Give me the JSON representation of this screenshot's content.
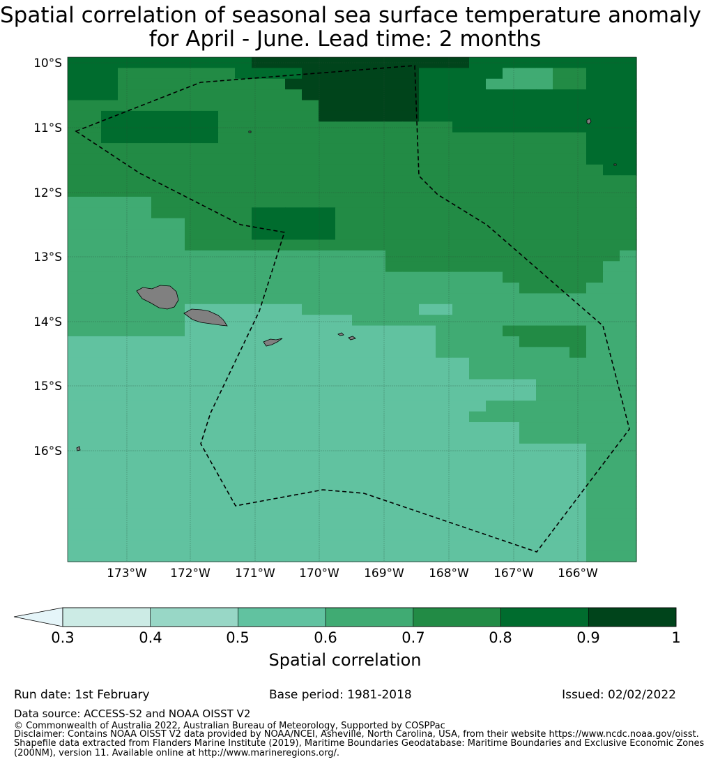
{
  "title": {
    "line1": "Spatial correlation of seasonal sea surface temperature anomaly",
    "line2": "for April - June. Lead time: 2 months"
  },
  "map": {
    "lat_labels": [
      "10°S",
      "11°S",
      "12°S",
      "13°S",
      "14°S",
      "15°S",
      "16°S"
    ],
    "lon_labels": [
      "173°W",
      "172°W",
      "171°W",
      "170°W",
      "169°W",
      "168°W",
      "167°W",
      "166°W"
    ],
    "colors": [
      "#ccebe5",
      "#98d7c6",
      "#61c2a0",
      "#40ab73",
      "#228b45",
      "#006c2e",
      "#00441b"
    ],
    "land_color": "#808080",
    "grid_rows": [
      "5555555555566666666666665555555555",
      "5554444444555566666665555533344555",
      "5554444444444666666665555333344555",
      "5554444444444466666665555555555555",
      "4444444444444446666665555555555555",
      "4455555554444446666665555555555555",
      "4455555554444444444444455555555555",
      "4455555554444444444444444444444555",
      "4444444444444444444444444444444555",
      "4444444444444444444444444444444555",
      "4444444444444444444444444444444455",
      "4444444444444444444444444444444444",
      "4444444444444444444444444444444444",
      "3333344444444444444444444444444444",
      "3333344444455555444444444444444444",
      "3333333444455555444444444444444444",
      "3333333444455555444444444444444444",
      "3333333444444444444444444444444444",
      "3333333333333333333444444444444443",
      "3333333333333333333444444444444433",
      "3333333333333333333333333344444433",
      "3333333333333333333333333334444333",
      "3333333333333333333333333333333333",
      "3333333222222233333332233333333333",
      "3333333222222222233333333333333333",
      "3333333222222222222222333344444333",
      "2222222222222222222222333334444333",
      "2222222222222222222222333333334333",
      "2222222222222222222222223333333333",
      "2222222222222222222222223333333333",
      "2222222222222222222222222222333333",
      "2222222222222222222222222222333333",
      "2222222222222222222222222333333333",
      "2222222222222222222222223333333333",
      "2222222222222222222222222223333333",
      "2222222222222222222222222223333333",
      "2222222222222222222222222222222333",
      "2222222222222222222222222222222333",
      "2222222222222222222222222222222333",
      "2222222222222222222222222222222333",
      "2222222222222222222222222222222333",
      "2222222222222222222222222222222333",
      "2222222222222222222222222222222333",
      "2222222222222222222222222222222333",
      "2222222222222222222222222222222333",
      "2222222222222222222222222222222333",
      "2222222222222222222222222222222333"
    ]
  },
  "colorbar": {
    "ticks": [
      "0.3",
      "0.4",
      "0.5",
      "0.6",
      "0.7",
      "0.8",
      "0.9",
      "1"
    ],
    "colors": [
      "#ccebe5",
      "#98d7c6",
      "#61c2a0",
      "#40ab73",
      "#228b45",
      "#006c2e",
      "#00441b"
    ],
    "extend_color": "#e5f5f9",
    "label": "Spatial correlation"
  },
  "footer": {
    "run_date": "Run date: 1st February",
    "base_period": "Base period: 1981-2018",
    "issued": "Issued: 02/02/2022",
    "data_source": "Data source: ACCESS-S2 and NOAA OISST V2",
    "copyright": "© Commonwealth of Australia 2022, Australian Bureau of Meteorology, Supported by COSPPac",
    "disclaimer_1": "Disclaimer: Contains NOAA OISST V2 data provided by NOAA/NCEI, Asheville, North Carolina, USA, from their website https://www.ncdc.noaa.gov/oisst.",
    "disclaimer_2": "Shapefile data extracted from Flanders Marine Institute (2019), Maritime Boundaries Geodatabase: Maritime Boundaries and Exclusive Economic Zones",
    "disclaimer_3": "(200NM), version 11. Available online at http://www.marineregions.org/."
  }
}
